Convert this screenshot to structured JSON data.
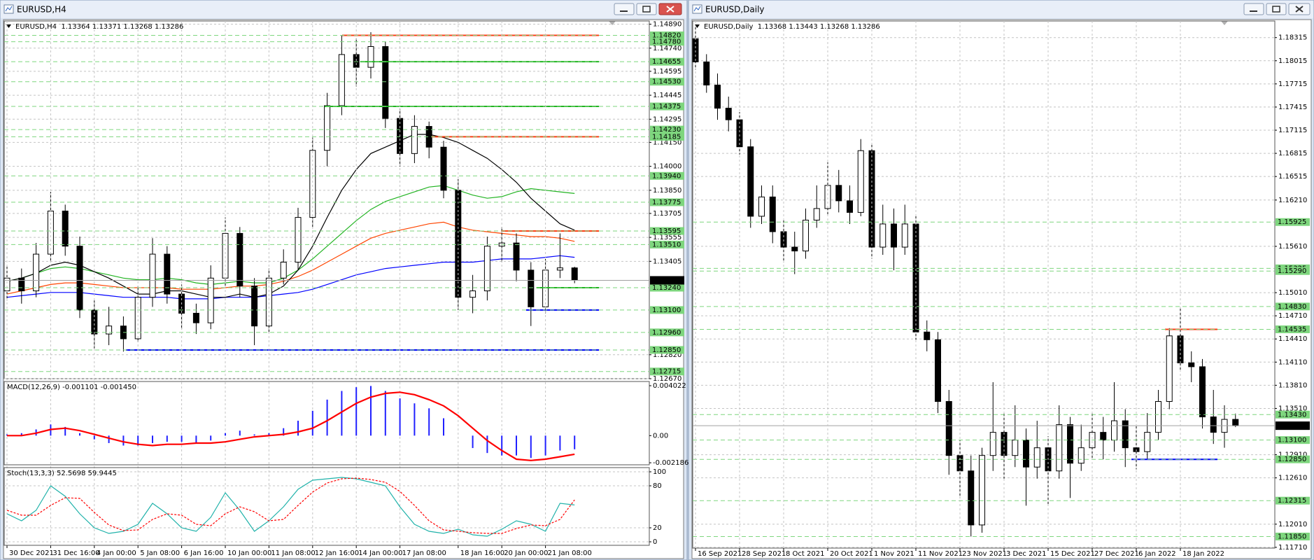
{
  "windows": [
    {
      "title": "EURUSD,H4"
    },
    {
      "title": "EURUSD,Daily"
    }
  ],
  "chart_data": [
    {
      "type": "candlestick",
      "title": "EURUSD,H4  1.13364 1.13371 1.13268 1.13286",
      "categories": [
        "30 Dec 2021",
        null,
        null,
        "31 Dec 16:00",
        null,
        null,
        "4 Jan 00:00",
        null,
        null,
        "5 Jan 08:00",
        null,
        null,
        "6 Jan 16:00",
        null,
        null,
        "10 Jan 00:00",
        null,
        null,
        "11 Jan 08:00",
        null,
        null,
        "12 Jan 16:00",
        null,
        null,
        "14 Jan 00:00",
        null,
        null,
        "17 Jan 08:00",
        null,
        null,
        null,
        "18 Jan 16:00",
        null,
        null,
        "20 Jan 00:00",
        null,
        null,
        "21 Jan 08:00",
        null,
        null
      ],
      "open": [
        1.1322,
        1.133,
        1.1322,
        1.1345,
        1.1372,
        1.135,
        1.131,
        1.1295,
        1.13,
        1.1292,
        1.1318,
        1.1345,
        1.132,
        1.1308,
        1.1302,
        1.133,
        1.1358,
        1.1325,
        1.13,
        1.133,
        1.134,
        1.1368,
        1.141,
        1.1438,
        1.147,
        1.1462,
        1.1475,
        1.143,
        1.1408,
        1.1425,
        1.1412,
        1.1385,
        1.1318,
        1.1322,
        1.135,
        1.1352,
        1.1335,
        1.1312,
        1.1335,
        1.13364
      ],
      "high": [
        1.1338,
        1.1336,
        1.1352,
        1.1384,
        1.1376,
        1.1356,
        1.1316,
        1.1312,
        1.1306,
        1.1325,
        1.1355,
        1.135,
        1.1326,
        1.1314,
        1.1338,
        1.1368,
        1.1362,
        1.133,
        1.1336,
        1.1348,
        1.1374,
        1.1418,
        1.1446,
        1.1482,
        1.148,
        1.1484,
        1.1478,
        1.1436,
        1.1432,
        1.1428,
        1.1416,
        1.1392,
        1.1332,
        1.1356,
        1.1362,
        1.1358,
        1.134,
        1.1342,
        1.1358,
        1.13371
      ],
      "low": [
        1.1316,
        1.1314,
        1.1318,
        1.134,
        1.1344,
        1.1305,
        1.1286,
        1.1288,
        1.1284,
        1.129,
        1.1312,
        1.1314,
        1.1298,
        1.1295,
        1.1298,
        1.1325,
        1.1318,
        1.1288,
        1.1296,
        1.1326,
        1.1335,
        1.1362,
        1.14,
        1.1432,
        1.145,
        1.1455,
        1.1424,
        1.14,
        1.1402,
        1.1405,
        1.138,
        1.131,
        1.1308,
        1.1316,
        1.134,
        1.1328,
        1.13,
        1.1308,
        1.133,
        1.13268
      ],
      "close": [
        1.133,
        1.1322,
        1.1345,
        1.1372,
        1.135,
        1.131,
        1.1295,
        1.13,
        1.1292,
        1.1318,
        1.1345,
        1.132,
        1.1308,
        1.1302,
        1.133,
        1.1358,
        1.1325,
        1.13,
        1.133,
        1.134,
        1.1368,
        1.141,
        1.1438,
        1.147,
        1.1462,
        1.1475,
        1.143,
        1.1408,
        1.1425,
        1.1412,
        1.1385,
        1.1318,
        1.1322,
        1.135,
        1.1352,
        1.1335,
        1.1312,
        1.1335,
        1.13364,
        1.13286
      ],
      "bull_color": "#ffffff",
      "bear_color": "#000000",
      "series": [
        {
          "color": "#0000ff",
          "values": [
            1.1318,
            1.1319,
            1.132,
            1.1321,
            1.1321,
            1.1321,
            1.132,
            1.1319,
            1.1318,
            1.1318,
            1.1318,
            1.1318,
            1.1317,
            1.1317,
            1.1317,
            1.1318,
            1.1318,
            1.1318,
            1.1319,
            1.132,
            1.1321,
            1.1323,
            1.1326,
            1.1329,
            1.1332,
            1.1334,
            1.1336,
            1.1337,
            1.1338,
            1.1339,
            1.134,
            1.134,
            1.134,
            1.1341,
            1.1342,
            1.1342,
            1.1342,
            1.1343,
            1.1344,
            1.1343
          ]
        },
        {
          "color": "#ff4500",
          "values": [
            1.132,
            1.1322,
            1.1324,
            1.1326,
            1.1327,
            1.1327,
            1.1326,
            1.1325,
            1.1324,
            1.1324,
            1.1324,
            1.1324,
            1.1323,
            1.1323,
            1.1323,
            1.1324,
            1.1325,
            1.1325,
            1.1326,
            1.1328,
            1.1331,
            1.1335,
            1.134,
            1.1345,
            1.135,
            1.1355,
            1.1358,
            1.136,
            1.1362,
            1.1364,
            1.1365,
            1.1362,
            1.136,
            1.1359,
            1.1358,
            1.1357,
            1.1356,
            1.1356,
            1.1355,
            1.1353
          ]
        },
        {
          "color": "#22b422",
          "values": [
            1.1328,
            1.133,
            1.1333,
            1.1336,
            1.1337,
            1.1336,
            1.1334,
            1.1332,
            1.133,
            1.1329,
            1.1329,
            1.133,
            1.1329,
            1.1327,
            1.1326,
            1.1327,
            1.1328,
            1.1327,
            1.1327,
            1.133,
            1.1335,
            1.1342,
            1.135,
            1.1358,
            1.1366,
            1.1373,
            1.1378,
            1.1381,
            1.1384,
            1.1387,
            1.1388,
            1.1385,
            1.1382,
            1.138,
            1.1381,
            1.1384,
            1.1386,
            1.1385,
            1.1384,
            1.1383
          ]
        },
        {
          "color": "#000000",
          "values": [
            1.1328,
            1.133,
            1.1333,
            1.1338,
            1.134,
            1.1338,
            1.1334,
            1.133,
            1.1325,
            1.132,
            1.132,
            1.1322,
            1.1322,
            1.132,
            1.1318,
            1.1318,
            1.132,
            1.1318,
            1.132,
            1.1325,
            1.1335,
            1.135,
            1.1368,
            1.1385,
            1.1398,
            1.1408,
            1.1412,
            1.1416,
            1.142,
            1.142,
            1.1418,
            1.1415,
            1.141,
            1.1405,
            1.1398,
            1.139,
            1.138,
            1.1372,
            1.1364,
            1.136
          ]
        }
      ],
      "levels": [
        {
          "value": 1.1482,
          "label": "1.14820"
        },
        {
          "value": 1.1478,
          "label": "1.14780"
        },
        1.14655,
        {
          "value": 1.1453,
          "label": "1.14530"
        },
        1.14375,
        {
          "value": 1.1423,
          "label": "1.14230"
        },
        1.14185,
        {
          "value": 1.1394,
          "label": "1.13940"
        },
        1.13775,
        1.13595,
        {
          "value": 1.1351,
          "label": "1.13510"
        },
        {
          "value": 1.1324,
          "label": "1.13240"
        },
        {
          "value": 1.131,
          "label": "1.13100"
        },
        {
          "value": 1.1296,
          "label": "1.12960"
        },
        {
          "value": 1.1285,
          "label": "1.12850"
        },
        1.12715
      ],
      "level_color": "#7ed67e",
      "lines": [
        {
          "price": 1.1482,
          "color": "#ff3c14"
        },
        {
          "price": 1.14655,
          "color": "#22b422"
        },
        {
          "price": 1.14375,
          "color": "#22b422"
        },
        {
          "price": 1.14185,
          "color": "#ff3c14"
        },
        {
          "price": 1.13595,
          "color": "#ff3c14"
        },
        {
          "price": 1.1324,
          "color": "#22b422"
        },
        {
          "price": 1.131,
          "color": "#0000ff"
        },
        {
          "price": 1.1285,
          "color": "#0000ff"
        }
      ],
      "current_price": 1.13286,
      "ylim": [
        1.1267,
        1.1491
      ],
      "yticks": [
        {
          "value": 1.1489,
          "label": "1.14890"
        },
        {
          "value": 1.1474,
          "label": "1.14740"
        },
        1.14595,
        1.14445,
        1.14295,
        {
          "value": 1.1415,
          "label": "1.14150"
        },
        {
          "value": 1.14,
          "label": "1.14000"
        },
        {
          "value": 1.1385,
          "label": "1.13850"
        },
        1.13705,
        1.13555,
        1.13405,
        {
          "value": 1.1282,
          "label": "1.12820"
        },
        {
          "value": 1.1267,
          "label": "1.12670"
        }
      ],
      "grid": true
    },
    {
      "type": "combo",
      "title": "MACD(12,26,9) -0.001101 -0.001450",
      "series": [
        {
          "style": "bar",
          "color": "#2020ff",
          "values": [
            0.0001,
            0.0002,
            0.0005,
            0.0009,
            0.0007,
            0.0002,
            -0.0003,
            -0.0006,
            -0.0008,
            -0.0008,
            -0.0006,
            -0.0005,
            -0.0005,
            -0.0006,
            -0.0004,
            0.0002,
            0.0004,
            0.0001,
            0.0002,
            0.0006,
            0.0012,
            0.002,
            0.0029,
            0.0036,
            0.0039,
            0.004,
            0.0036,
            0.003,
            0.0026,
            0.0022,
            0.0014,
            0.0,
            -0.001,
            -0.0014,
            -0.0016,
            -0.0016,
            -0.0018,
            -0.0016,
            -0.0012,
            -0.0011
          ]
        },
        {
          "style": "line",
          "color": "#ff0000",
          "values": [
            0.0,
            0.0,
            0.0002,
            0.0005,
            0.0006,
            0.0004,
            0.0001,
            -0.0002,
            -0.0005,
            -0.0007,
            -0.0008,
            -0.0007,
            -0.0007,
            -0.0006,
            -0.0006,
            -0.0005,
            -0.0003,
            -0.0001,
            0.0,
            0.0001,
            0.0003,
            0.0006,
            0.0012,
            0.0019,
            0.0026,
            0.0031,
            0.0034,
            0.0035,
            0.0033,
            0.0029,
            0.0024,
            0.0016,
            0.0006,
            -0.0004,
            -0.0012,
            -0.0019,
            -0.002,
            -0.0019,
            -0.0017,
            -0.0015
          ]
        }
      ],
      "ylim": [
        -0.00235,
        0.00436
      ],
      "yticks": [
        0.004022,
        {
          "value": 0,
          "label": "0.00"
        },
        -0.002186
      ],
      "grid": false
    },
    {
      "type": "line",
      "title": "Stoch(13,3,3) 52.5698 59.9445",
      "series": [
        {
          "color": "#20b2aa",
          "values": [
            40,
            30,
            45,
            80,
            65,
            40,
            20,
            12,
            15,
            25,
            55,
            40,
            20,
            15,
            35,
            70,
            45,
            15,
            30,
            50,
            75,
            88,
            90,
            92,
            90,
            85,
            80,
            50,
            25,
            15,
            12,
            18,
            10,
            8,
            18,
            30,
            25,
            15,
            55,
            52.5698
          ]
        },
        {
          "color": "#ff0000",
          "dash": true,
          "values": [
            45,
            38,
            38,
            52,
            63,
            62,
            42,
            24,
            16,
            17,
            32,
            40,
            38,
            25,
            23,
            40,
            50,
            43,
            30,
            32,
            52,
            71,
            84,
            90,
            91,
            89,
            85,
            72,
            52,
            30,
            17,
            15,
            13,
            12,
            12,
            19,
            24,
            23,
            32,
            59.9445
          ]
        }
      ],
      "ylim": [
        -5,
        106
      ],
      "yticks": [
        100,
        80,
        20,
        0
      ],
      "grid": true
    },
    {
      "type": "candlestick",
      "title": "EURUSD,Daily  1.13368 1.13443 1.13268 1.13286",
      "categories": [
        "16 Sep 2021",
        null,
        null,
        null,
        "28 Sep 2021",
        null,
        null,
        null,
        "8 Oct 2021",
        null,
        null,
        null,
        "20 Oct 2021",
        null,
        null,
        null,
        "1 Nov 2021",
        null,
        null,
        null,
        "11 Nov 2021",
        null,
        null,
        null,
        "23 Nov 2021",
        null,
        null,
        null,
        "3 Dec 2021",
        null,
        null,
        null,
        "15 Dec 2021",
        null,
        null,
        null,
        "27 Dec 2021",
        null,
        null,
        null,
        "6 Jan 2022",
        null,
        null,
        null,
        "18 Jan 2022",
        null,
        null,
        null,
        null,
        null
      ],
      "open": [
        1.183,
        1.18,
        1.177,
        1.174,
        1.1725,
        1.169,
        1.16,
        1.1625,
        1.158,
        1.156,
        1.1555,
        1.1595,
        1.161,
        1.164,
        1.162,
        1.1605,
        1.1685,
        1.156,
        1.159,
        1.156,
        1.159,
        1.145,
        1.144,
        1.136,
        1.129,
        1.127,
        1.12,
        1.129,
        1.132,
        1.129,
        1.131,
        1.1275,
        1.13,
        1.127,
        1.133,
        1.128,
        1.13,
        1.132,
        1.131,
        1.1335,
        1.13,
        1.1295,
        1.132,
        1.136,
        1.1445,
        1.141,
        1.1405,
        1.134,
        1.132,
        1.13368
      ],
      "high": [
        1.1845,
        1.181,
        1.1785,
        1.1755,
        1.1735,
        1.17,
        1.164,
        1.164,
        1.1595,
        1.158,
        1.161,
        1.164,
        1.167,
        1.166,
        1.164,
        1.17,
        1.1695,
        1.1615,
        1.161,
        1.1615,
        1.16,
        1.1465,
        1.145,
        1.1375,
        1.131,
        1.129,
        1.13,
        1.1385,
        1.1345,
        1.1355,
        1.1325,
        1.1335,
        1.1315,
        1.1355,
        1.134,
        1.133,
        1.1345,
        1.134,
        1.1385,
        1.135,
        1.133,
        1.1345,
        1.1375,
        1.1455,
        1.1482,
        1.1425,
        1.1415,
        1.1375,
        1.1355,
        1.13443
      ],
      "low": [
        1.179,
        1.176,
        1.1725,
        1.171,
        1.168,
        1.1585,
        1.159,
        1.1565,
        1.154,
        1.1525,
        1.1545,
        1.1585,
        1.16,
        1.1605,
        1.159,
        1.16,
        1.1545,
        1.155,
        1.153,
        1.155,
        1.144,
        1.1425,
        1.1345,
        1.1265,
        1.1235,
        1.1185,
        1.119,
        1.127,
        1.126,
        1.1275,
        1.1225,
        1.126,
        1.1225,
        1.126,
        1.1235,
        1.127,
        1.1285,
        1.1285,
        1.1295,
        1.1275,
        1.1272,
        1.1285,
        1.131,
        1.135,
        1.14,
        1.1385,
        1.1325,
        1.1305,
        1.13,
        1.13268
      ],
      "close": [
        1.18,
        1.177,
        1.174,
        1.1725,
        1.169,
        1.16,
        1.1625,
        1.158,
        1.156,
        1.1555,
        1.1595,
        1.161,
        1.164,
        1.162,
        1.1605,
        1.1685,
        1.156,
        1.159,
        1.156,
        1.159,
        1.145,
        1.144,
        1.136,
        1.129,
        1.127,
        1.12,
        1.129,
        1.132,
        1.129,
        1.131,
        1.1275,
        1.13,
        1.127,
        1.133,
        1.128,
        1.13,
        1.132,
        1.131,
        1.1335,
        1.13,
        1.1295,
        1.132,
        1.136,
        1.1445,
        1.141,
        1.1405,
        1.134,
        1.132,
        1.13368,
        1.13286
      ],
      "bull_color": "#ffffff",
      "bear_color": "#000000",
      "levels": [
        1.15925,
        1.15325,
        {
          "value": 1.1529,
          "label": "1.15290"
        },
        {
          "value": 1.1483,
          "label": "1.14830"
        },
        1.14535,
        {
          "value": 1.1343,
          "label": "1.13430"
        },
        {
          "value": 1.131,
          "label": "1.13100"
        },
        {
          "value": 1.1285,
          "label": "1.12850"
        },
        1.12315,
        {
          "value": 1.1185,
          "label": "1.11850"
        }
      ],
      "level_color": "#7ed67e",
      "lines": [
        {
          "price": 1.14535,
          "color": "#ff3c14"
        },
        {
          "price": 1.1285,
          "color": "#0000ff"
        }
      ],
      "current_price": 1.13286,
      "ylim": [
        1.117,
        1.1853
      ],
      "yticks": [
        1.18315,
        1.18015,
        1.17715,
        1.17415,
        1.17115,
        1.16815,
        1.16515,
        {
          "value": 1.1621,
          "label": "1.16210"
        },
        {
          "value": 1.1561,
          "label": "1.15610"
        },
        {
          "value": 1.1501,
          "label": "1.15010"
        },
        {
          "value": 1.1471,
          "label": "1.14710"
        },
        {
          "value": 1.1441,
          "label": "1.14410"
        },
        {
          "value": 1.1411,
          "label": "1.14110"
        },
        {
          "value": 1.1381,
          "label": "1.13810"
        },
        {
          "value": 1.1351,
          "label": "1.13510"
        },
        {
          "value": 1.1291,
          "label": "1.12910"
        },
        {
          "value": 1.1261,
          "label": "1.12610"
        },
        {
          "value": 1.1201,
          "label": "1.12010"
        },
        {
          "value": 1.1171,
          "label": "1.11710"
        }
      ],
      "grid": true
    }
  ]
}
